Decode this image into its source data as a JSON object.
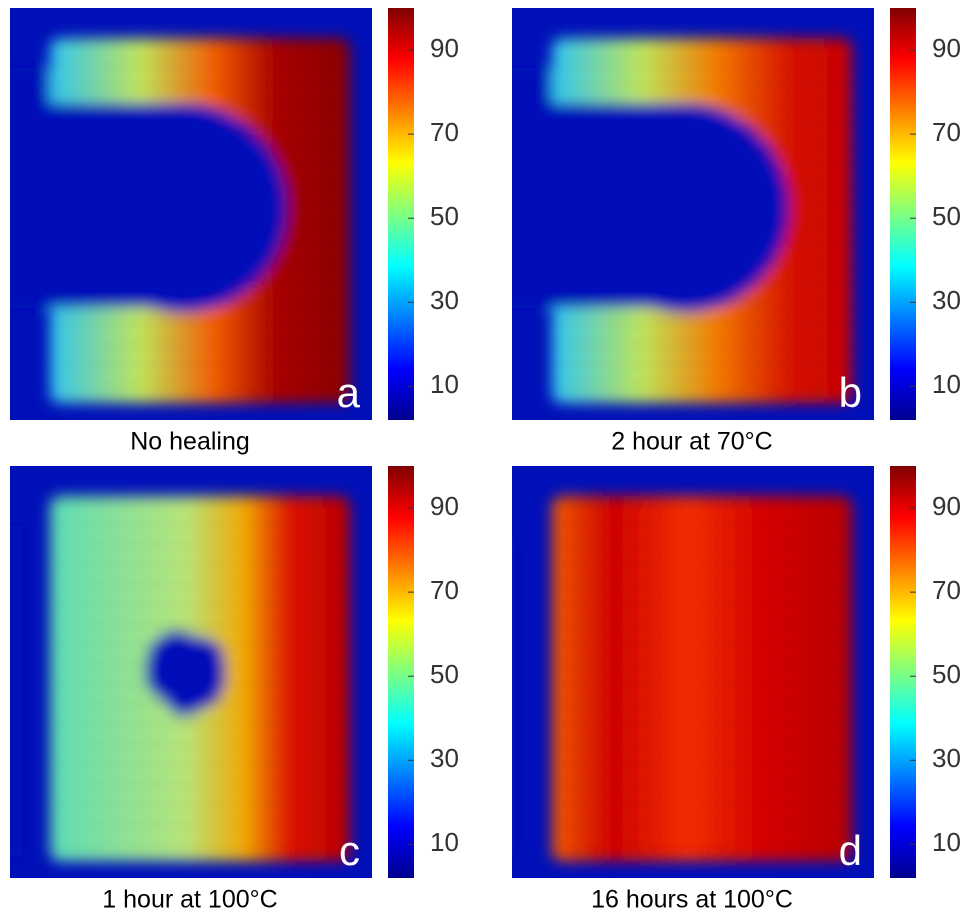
{
  "chart_data": [
    {
      "type": "heatmap",
      "label": "a",
      "caption": "No healing",
      "colormap": "jet",
      "clim": [
        2,
        100
      ],
      "cticks": [
        10,
        30,
        50,
        70,
        90
      ]
    },
    {
      "type": "heatmap",
      "label": "b",
      "caption": "2 hour at 70°C",
      "colormap": "jet",
      "clim": [
        2,
        100
      ],
      "cticks": [
        10,
        30,
        50,
        70,
        90
      ]
    },
    {
      "type": "heatmap",
      "label": "c",
      "caption": "1 hour at 100°C",
      "colormap": "jet",
      "clim": [
        2,
        100
      ],
      "cticks": [
        10,
        30,
        50,
        70,
        90
      ]
    },
    {
      "type": "heatmap",
      "label": "d",
      "caption": "16 hours at 100°C",
      "colormap": "jet",
      "clim": [
        2,
        100
      ],
      "cticks": [
        10,
        30,
        50,
        70,
        90
      ]
    }
  ]
}
